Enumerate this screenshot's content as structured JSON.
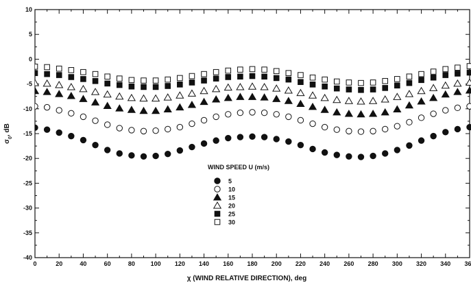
{
  "chart_data": {
    "type": "scatter",
    "xlabel": "χ (WIND RELATIVE DIRECTION), deg",
    "ylabel": "σ0, dB",
    "ylabel_main": "σ",
    "ylabel_sub": "0",
    "ylabel_rest": ", dB",
    "xlim": [
      0,
      360
    ],
    "ylim": [
      -40,
      10
    ],
    "x_ticks": [
      0,
      20,
      40,
      60,
      80,
      100,
      120,
      140,
      160,
      180,
      200,
      220,
      240,
      260,
      280,
      300,
      320,
      340,
      360
    ],
    "y_ticks": [
      -40,
      -35,
      -30,
      -25,
      -20,
      -15,
      -10,
      -5,
      0,
      5,
      10
    ],
    "x_tick_labels": [
      "0",
      "20",
      "40",
      "60",
      "80",
      "100",
      "120",
      "140",
      "160",
      "180",
      "200",
      "220",
      "240",
      "260",
      "280",
      "300",
      "320",
      "340",
      "360"
    ],
    "y_tick_labels": [
      "-40",
      "-35",
      "-30",
      "-25",
      "-20",
      "-15",
      "-10",
      "-5",
      "0",
      "5",
      "10"
    ],
    "grid": false,
    "legend_title": "WIND SPEED U (m/s)",
    "legend_placement": "bottom-center",
    "x": [
      0,
      10,
      20,
      30,
      40,
      50,
      60,
      70,
      80,
      90,
      100,
      110,
      120,
      130,
      140,
      150,
      160,
      170,
      180,
      190,
      200,
      210,
      220,
      230,
      240,
      250,
      260,
      270,
      280,
      290,
      300,
      310,
      320,
      330,
      340,
      350,
      360
    ],
    "series": [
      {
        "name": "5",
        "marker": "circle-filled",
        "values": [
          -13.8,
          -14.2,
          -14.8,
          -15.5,
          -16.3,
          -17.3,
          -18.3,
          -19.0,
          -19.4,
          -19.6,
          -19.5,
          -19.1,
          -18.4,
          -17.7,
          -17.0,
          -16.4,
          -15.9,
          -15.7,
          -15.6,
          -15.7,
          -16.1,
          -16.6,
          -17.3,
          -18.1,
          -18.8,
          -19.3,
          -19.6,
          -19.7,
          -19.5,
          -19.0,
          -18.3,
          -17.4,
          -16.4,
          -15.5,
          -14.7,
          -14.1,
          -13.7
        ]
      },
      {
        "name": "10",
        "marker": "circle-open",
        "values": [
          -9.5,
          -9.7,
          -10.3,
          -10.9,
          -11.6,
          -12.4,
          -13.2,
          -13.9,
          -14.3,
          -14.5,
          -14.4,
          -14.1,
          -13.7,
          -13.0,
          -12.3,
          -11.6,
          -11.1,
          -10.8,
          -10.7,
          -10.8,
          -11.1,
          -11.6,
          -12.3,
          -13.0,
          -13.7,
          -14.2,
          -14.5,
          -14.6,
          -14.5,
          -14.1,
          -13.5,
          -12.7,
          -11.8,
          -11.0,
          -10.3,
          -9.8,
          -9.5
        ]
      },
      {
        "name": "15",
        "marker": "triangle-filled",
        "values": [
          -6.4,
          -6.6,
          -7.0,
          -7.4,
          -8.0,
          -8.7,
          -9.4,
          -9.9,
          -10.2,
          -10.4,
          -10.4,
          -10.1,
          -9.7,
          -9.2,
          -8.6,
          -8.1,
          -7.8,
          -7.6,
          -7.6,
          -7.7,
          -8.0,
          -8.4,
          -9.0,
          -9.6,
          -10.2,
          -10.7,
          -11.0,
          -11.1,
          -11.0,
          -10.7,
          -10.1,
          -9.3,
          -8.5,
          -7.8,
          -7.1,
          -6.6,
          -6.3
        ]
      },
      {
        "name": "20",
        "marker": "triangle-open",
        "values": [
          -4.8,
          -4.9,
          -5.2,
          -5.6,
          -6.0,
          -6.6,
          -7.1,
          -7.5,
          -7.8,
          -7.9,
          -7.9,
          -7.7,
          -7.3,
          -6.9,
          -6.4,
          -6.0,
          -5.7,
          -5.6,
          -5.5,
          -5.6,
          -5.9,
          -6.3,
          -6.8,
          -7.3,
          -7.8,
          -8.2,
          -8.4,
          -8.5,
          -8.4,
          -8.1,
          -7.6,
          -7.0,
          -6.4,
          -5.8,
          -5.3,
          -4.9,
          -4.7
        ]
      },
      {
        "name": "25",
        "marker": "square-filled",
        "values": [
          -2.8,
          -3.0,
          -3.2,
          -3.6,
          -4.0,
          -4.4,
          -4.9,
          -5.2,
          -5.5,
          -5.6,
          -5.6,
          -5.4,
          -5.1,
          -4.7,
          -4.3,
          -3.9,
          -3.6,
          -3.5,
          -3.4,
          -3.5,
          -3.8,
          -4.1,
          -4.6,
          -5.1,
          -5.5,
          -5.9,
          -6.1,
          -6.2,
          -6.1,
          -5.8,
          -5.3,
          -4.8,
          -4.2,
          -3.7,
          -3.2,
          -2.9,
          -2.7
        ]
      },
      {
        "name": "30",
        "marker": "square-open",
        "values": [
          -1.5,
          -1.6,
          -1.9,
          -2.2,
          -2.6,
          -3.0,
          -3.5,
          -3.9,
          -4.2,
          -4.3,
          -4.3,
          -4.1,
          -3.8,
          -3.4,
          -3.0,
          -2.6,
          -2.3,
          -2.1,
          -2.0,
          -2.1,
          -2.4,
          -2.8,
          -3.2,
          -3.7,
          -4.1,
          -4.5,
          -4.7,
          -4.8,
          -4.7,
          -4.4,
          -4.0,
          -3.5,
          -3.0,
          -2.5,
          -2.0,
          -1.7,
          -1.4
        ]
      }
    ]
  }
}
